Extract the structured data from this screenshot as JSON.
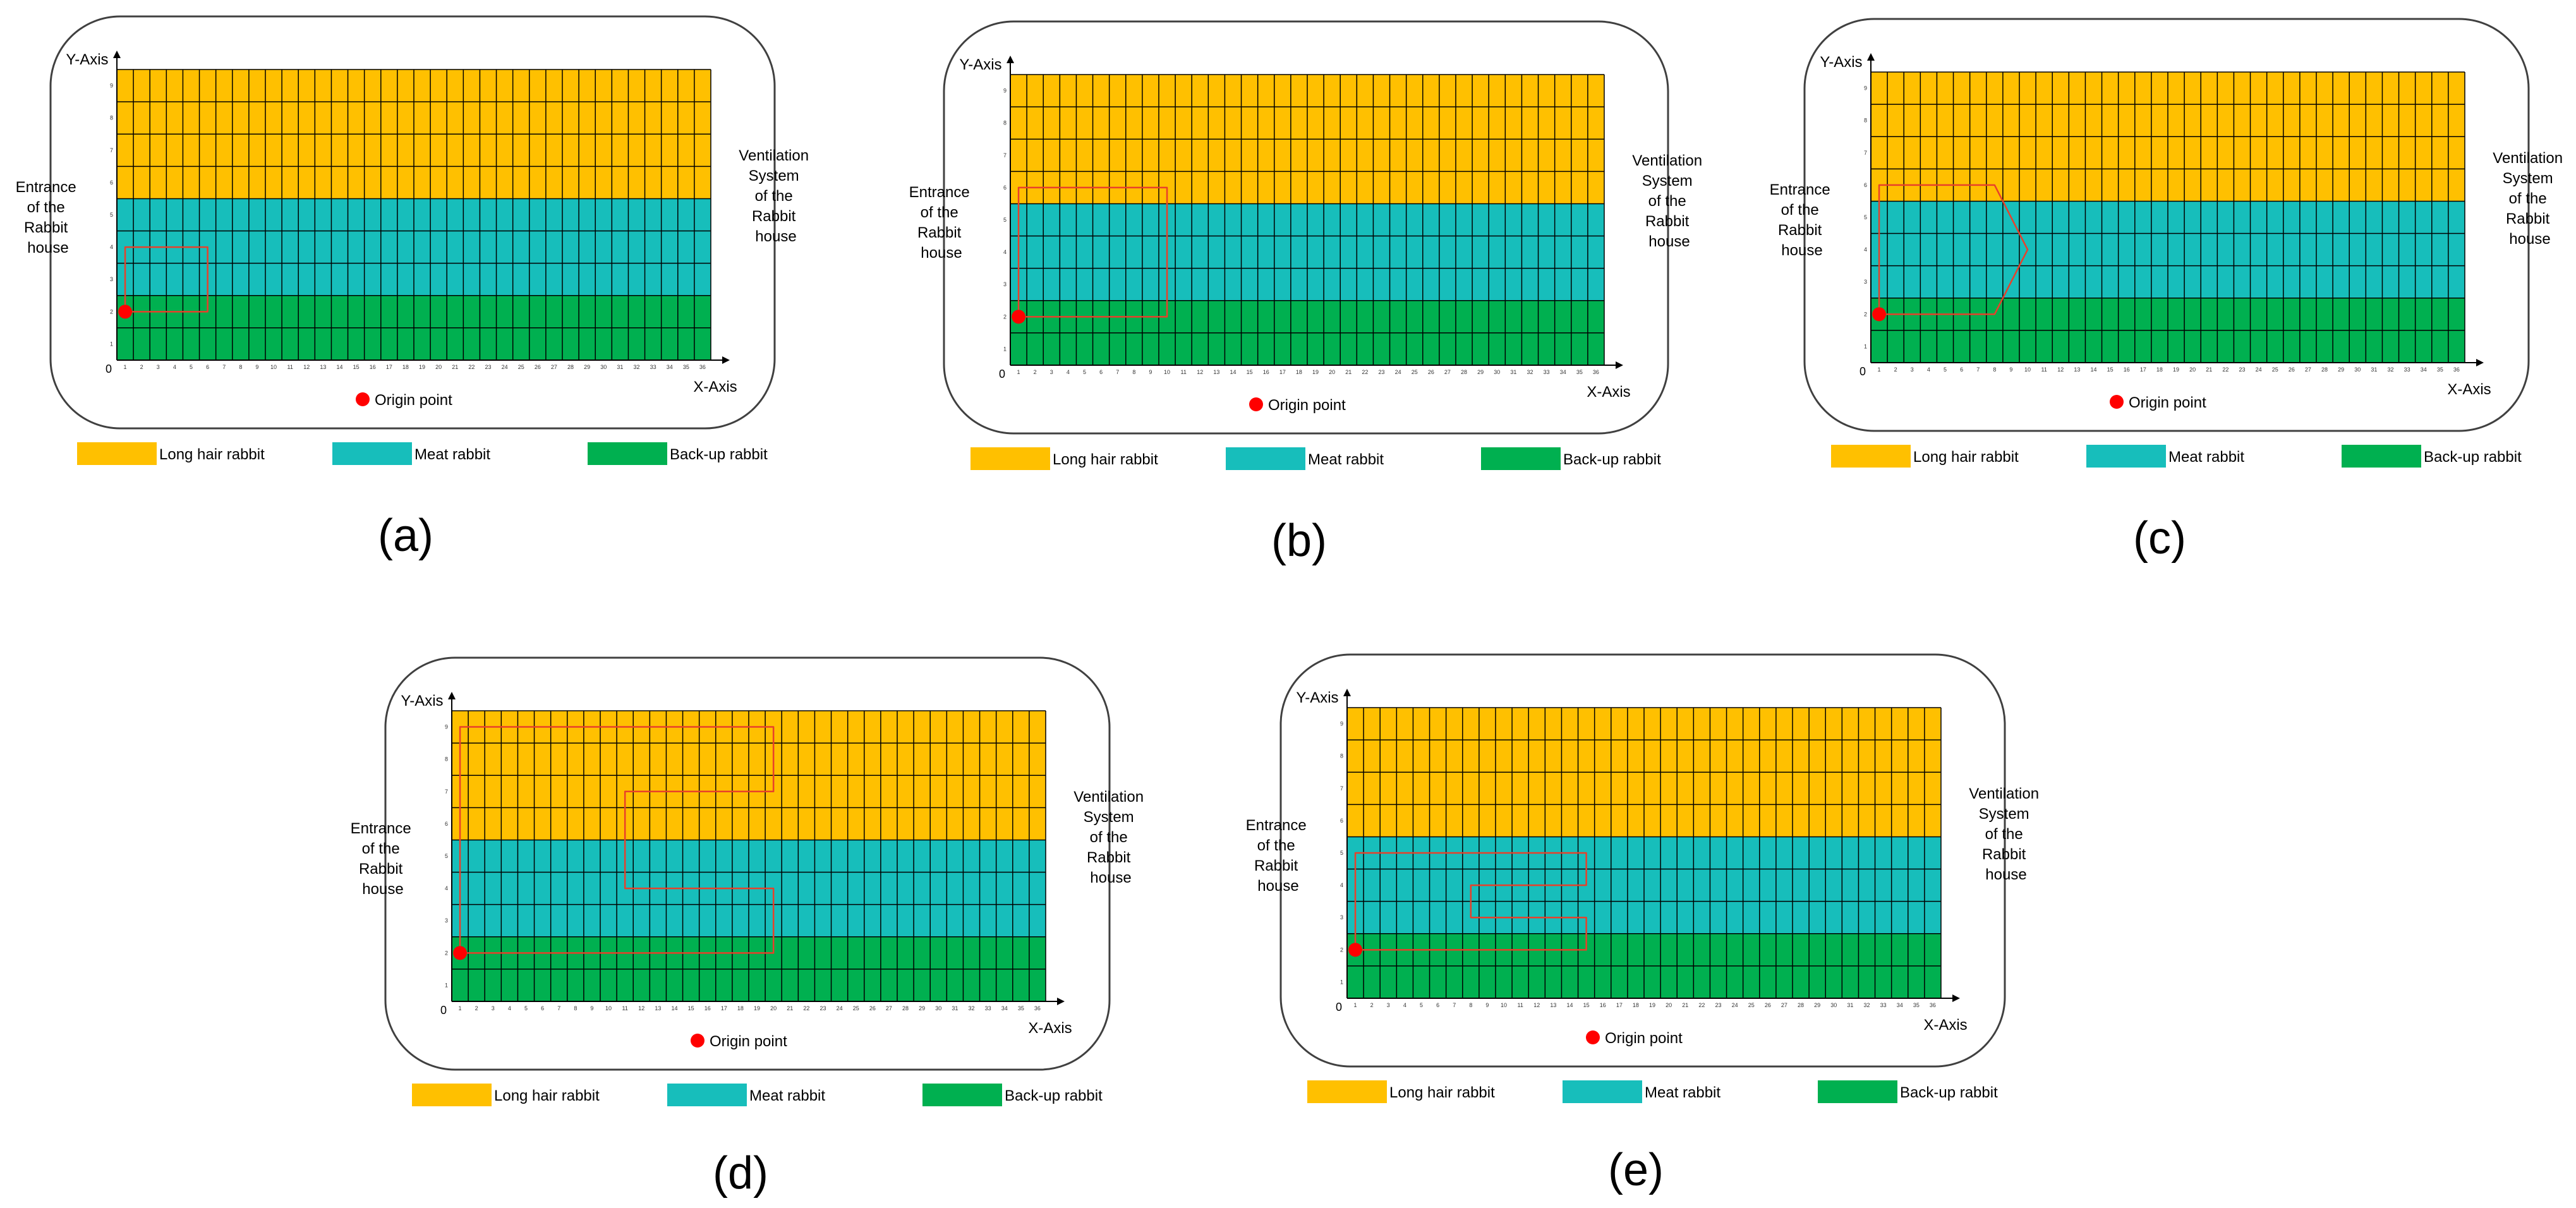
{
  "colors": {
    "long_hair": "#FFC000",
    "meat": "#17BEBB",
    "backup": "#00B050",
    "grid_line": "#000000",
    "path": "#E8402A",
    "origin": "#FF0000",
    "frame": "#404040"
  },
  "grid": {
    "cols": 36,
    "rows": 9,
    "long_hair_rows": 4,
    "meat_rows": 3,
    "backup_rows": 2
  },
  "labels": {
    "y_axis": "Y-Axis",
    "x_axis": "X-Axis",
    "zero": "0",
    "origin": "Origin point",
    "entrance": [
      "Entrance",
      "of the",
      "Rabbit",
      "house"
    ],
    "ventilation": [
      "Ventilation",
      "System",
      "of the",
      "Rabbit",
      "house"
    ]
  },
  "legend": {
    "long_hair": "Long hair rabbit",
    "meat": "Meat rabbit",
    "backup": "Back-up rabbit"
  },
  "panels": [
    {
      "id": "a",
      "caption": "(a)",
      "path": [
        [
          1,
          2
        ],
        [
          1,
          4
        ],
        [
          6,
          4
        ],
        [
          6,
          2
        ],
        [
          1,
          2
        ]
      ]
    },
    {
      "id": "b",
      "caption": "(b)",
      "path": [
        [
          1,
          2
        ],
        [
          1,
          6
        ],
        [
          10,
          6
        ],
        [
          10,
          2
        ],
        [
          1,
          2
        ]
      ]
    },
    {
      "id": "c",
      "caption": "(c)",
      "path": [
        [
          1,
          2
        ],
        [
          1,
          6
        ],
        [
          8,
          6
        ],
        [
          10,
          4
        ],
        [
          8,
          2
        ],
        [
          1,
          2
        ]
      ]
    },
    {
      "id": "d",
      "caption": "(d)",
      "path": [
        [
          1,
          2
        ],
        [
          1,
          9
        ],
        [
          20,
          9
        ],
        [
          20,
          7
        ],
        [
          11,
          7
        ],
        [
          11,
          4
        ],
        [
          20,
          4
        ],
        [
          20,
          2
        ],
        [
          1,
          2
        ]
      ]
    },
    {
      "id": "e",
      "caption": "(e)",
      "path": [
        [
          1,
          2
        ],
        [
          1,
          5
        ],
        [
          15,
          5
        ],
        [
          15,
          4
        ],
        [
          8,
          4
        ],
        [
          8,
          3
        ],
        [
          15,
          3
        ],
        [
          15,
          2
        ],
        [
          1,
          2
        ]
      ]
    }
  ]
}
